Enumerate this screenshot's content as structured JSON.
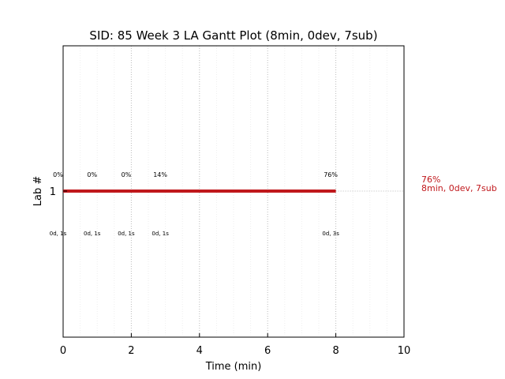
{
  "chart_data": {
    "type": "gantt",
    "title": "SID: 85 Week 3 LA Gantt Plot (8min, 0dev, 7sub)",
    "xlabel": "Time (min)",
    "ylabel": "Lab #",
    "xlim": [
      0,
      10
    ],
    "xticks": [
      "0",
      "2",
      "4",
      "6",
      "8",
      "10"
    ],
    "yticks": [
      "1"
    ],
    "grid": "dotted vertical at major ticks, faint dotted vertical at half-minute steps",
    "bar": {
      "lab": "1",
      "start": 0,
      "end": 8.0,
      "color": "#c0181c",
      "side_label_pct": "76%",
      "side_label_info": "8min, 0dev, 7sub"
    },
    "submissions": [
      {
        "x": -0.15,
        "pct": "0%",
        "info": "0d, 1s"
      },
      {
        "x": 0.85,
        "pct": "0%",
        "info": "0d, 1s"
      },
      {
        "x": 1.85,
        "pct": "0%",
        "info": "0d, 1s"
      },
      {
        "x": 2.85,
        "pct": "14%",
        "info": "0d, 1s"
      },
      {
        "x": 7.85,
        "pct": "76%",
        "info": "0d, 3s"
      }
    ]
  }
}
